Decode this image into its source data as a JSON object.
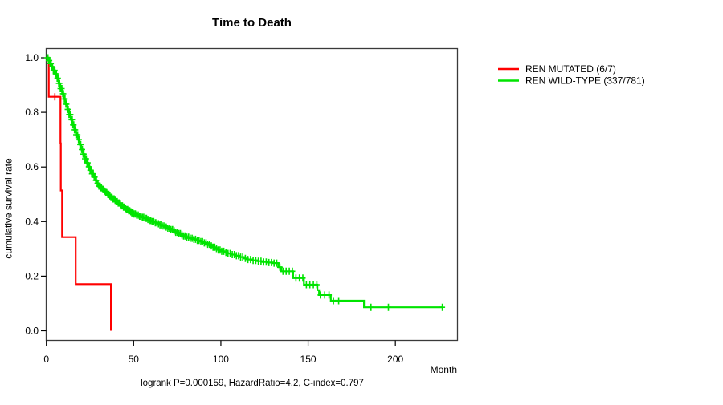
{
  "title": "Time to Death",
  "caption": "logrank P=0.000159, HazardRatio=4.2, C-index=0.797",
  "x_axis": {
    "label": "Month",
    "tick_labels": [
      "0",
      "50",
      "100",
      "150",
      "200"
    ],
    "tick_values": [
      0,
      50,
      100,
      150,
      200
    ]
  },
  "y_axis": {
    "label": "cumulative survival rate",
    "tick_labels": [
      "0.0",
      "0.2",
      "0.4",
      "0.6",
      "0.8",
      "1.0"
    ],
    "tick_values": [
      0,
      0.2,
      0.4,
      0.6,
      0.8,
      1.0
    ]
  },
  "legend": {
    "items": [
      {
        "label": "REN MUTATED (6/7)",
        "color": "#ff0000"
      },
      {
        "label": "REN WILD-TYPE (337/781)",
        "color": "#00e400"
      }
    ]
  },
  "chart_data": {
    "type": "line",
    "subtype": "kaplan_meier_step",
    "title": "Time to Death",
    "xlabel": "Month",
    "ylabel": "cumulative survival rate",
    "xlim": [
      0,
      235
    ],
    "ylim": [
      0,
      1
    ],
    "grid": false,
    "legend_position": "outside-right",
    "stats": {
      "logrank_p": "0.000159",
      "hazard_ratio": "4.2",
      "c_index": "0.797"
    },
    "series": [
      {
        "name": "REN MUTATED (6/7)",
        "events": "6/7",
        "color": "#ff0000",
        "points": [
          [
            0,
            1.0
          ],
          [
            1.4,
            0.857
          ],
          [
            8.1,
            0.686
          ],
          [
            8.3,
            0.514
          ],
          [
            9.0,
            0.343
          ],
          [
            16.8,
            0.171
          ],
          [
            37,
            0.0
          ]
        ],
        "censor_x": [
          4.9
        ]
      },
      {
        "name": "REN WILD-TYPE (337/781)",
        "events": "337/781",
        "color": "#00e400",
        "points": [
          [
            0,
            1.0
          ],
          [
            1,
            0.99
          ],
          [
            2,
            0.979
          ],
          [
            3,
            0.967
          ],
          [
            4,
            0.954
          ],
          [
            5,
            0.941
          ],
          [
            6,
            0.925
          ],
          [
            7,
            0.906
          ],
          [
            8,
            0.887
          ],
          [
            9,
            0.868
          ],
          [
            10,
            0.849
          ],
          [
            11,
            0.83
          ],
          [
            12,
            0.811
          ],
          [
            13,
            0.792
          ],
          [
            14,
            0.773
          ],
          [
            15,
            0.754
          ],
          [
            16,
            0.736
          ],
          [
            17,
            0.718
          ],
          [
            18,
            0.7
          ],
          [
            19,
            0.682
          ],
          [
            20,
            0.664
          ],
          [
            21,
            0.647
          ],
          [
            22,
            0.63
          ],
          [
            23,
            0.615
          ],
          [
            24,
            0.601
          ],
          [
            25,
            0.588
          ],
          [
            26,
            0.575
          ],
          [
            27,
            0.563
          ],
          [
            28,
            0.551
          ],
          [
            29,
            0.54
          ],
          [
            30,
            0.53
          ],
          [
            31,
            0.524
          ],
          [
            32,
            0.518
          ],
          [
            33,
            0.512
          ],
          [
            34,
            0.506
          ],
          [
            35,
            0.5
          ],
          [
            36,
            0.494
          ],
          [
            37,
            0.488
          ],
          [
            38,
            0.483
          ],
          [
            39,
            0.478
          ],
          [
            40,
            0.473
          ],
          [
            41,
            0.468
          ],
          [
            42,
            0.463
          ],
          [
            43,
            0.458
          ],
          [
            44,
            0.453
          ],
          [
            45,
            0.448
          ],
          [
            46,
            0.444
          ],
          [
            47,
            0.44
          ],
          [
            48,
            0.436
          ],
          [
            49,
            0.432
          ],
          [
            50,
            0.428
          ],
          [
            51.5,
            0.424
          ],
          [
            53,
            0.42
          ],
          [
            54.5,
            0.416
          ],
          [
            56,
            0.412
          ],
          [
            57.5,
            0.408
          ],
          [
            59,
            0.404
          ],
          [
            60.5,
            0.4
          ],
          [
            62,
            0.396
          ],
          [
            63.5,
            0.392
          ],
          [
            65,
            0.388
          ],
          [
            66.5,
            0.384
          ],
          [
            68,
            0.38
          ],
          [
            69.5,
            0.376
          ],
          [
            71,
            0.371
          ],
          [
            72.5,
            0.366
          ],
          [
            74,
            0.361
          ],
          [
            75.5,
            0.356
          ],
          [
            77,
            0.351
          ],
          [
            78.5,
            0.347
          ],
          [
            80,
            0.343
          ],
          [
            82,
            0.339
          ],
          [
            84,
            0.335
          ],
          [
            86,
            0.331
          ],
          [
            88,
            0.327
          ],
          [
            90,
            0.322
          ],
          [
            92,
            0.317
          ],
          [
            94,
            0.311
          ],
          [
            95.5,
            0.306
          ],
          [
            97,
            0.301
          ],
          [
            98.5,
            0.296
          ],
          [
            100,
            0.291
          ],
          [
            102,
            0.287
          ],
          [
            104,
            0.283
          ],
          [
            106,
            0.279
          ],
          [
            108,
            0.275
          ],
          [
            110.5,
            0.27
          ],
          [
            113,
            0.265
          ],
          [
            115.5,
            0.261
          ],
          [
            118,
            0.258
          ],
          [
            121,
            0.255
          ],
          [
            124,
            0.252
          ],
          [
            127,
            0.25
          ],
          [
            130,
            0.248
          ],
          [
            133,
            0.233
          ],
          [
            134.6,
            0.218
          ],
          [
            141.4,
            0.193
          ],
          [
            147.6,
            0.169
          ],
          [
            155.3,
            0.149
          ],
          [
            156.3,
            0.131
          ],
          [
            163,
            0.11
          ],
          [
            182,
            0.086
          ],
          [
            226.9,
            0.086
          ]
        ],
        "censor_x": [
          0.4,
          0.9,
          1.3,
          1.8,
          2.2,
          2.7,
          3.1,
          3.6,
          4,
          4.4,
          4.9,
          5.3,
          5.8,
          6.2,
          6.7,
          7.1,
          7.6,
          8,
          8.5,
          8.9,
          9.4,
          9.8,
          10.3,
          10.7,
          11.2,
          11.6,
          12.1,
          12.5,
          13,
          13.4,
          13.9,
          14.3,
          14.8,
          15.2,
          15.7,
          16.1,
          16.6,
          17,
          17.5,
          17.9,
          18.4,
          18.8,
          19.3,
          19.7,
          20.2,
          20.6,
          21.1,
          21.5,
          22,
          22.4,
          22.9,
          23.3,
          23.8,
          24.2,
          24.7,
          25.1,
          25.6,
          26,
          26.5,
          26.9,
          27.4,
          27.8,
          28.3,
          28.7,
          29.2,
          29.6,
          30.1,
          30.5,
          31,
          31.6,
          32.2,
          32.8,
          33.4,
          34,
          34.6,
          35.2,
          35.8,
          36.4,
          37,
          37.6,
          38.2,
          38.8,
          39.4,
          40,
          40.6,
          41.2,
          41.8,
          42.4,
          43,
          43.6,
          44.2,
          44.8,
          45.4,
          46,
          46.6,
          47.2,
          47.8,
          48.4,
          49,
          49.6,
          50.2,
          51,
          51.8,
          52.6,
          53.4,
          54.2,
          55,
          55.8,
          56.6,
          57.4,
          58.2,
          59,
          59.8,
          60.6,
          61.5,
          62.4,
          63.3,
          64.2,
          65.1,
          66,
          66.9,
          67.8,
          68.7,
          69.6,
          70.5,
          71.4,
          72.3,
          73.2,
          74.1,
          75,
          75.9,
          76.8,
          77.7,
          78.6,
          79.5,
          80.5,
          81.5,
          82.5,
          83.5,
          84.5,
          85.5,
          86.5,
          87.5,
          88.5,
          89.5,
          90.5,
          91.5,
          92.5,
          93.5,
          94.5,
          95.5,
          96.5,
          97.5,
          98.5,
          99.5,
          100.5,
          101.7,
          102.9,
          104.1,
          105.3,
          106.5,
          107.7,
          108.9,
          110.1,
          111.3,
          112.5,
          114,
          115.5,
          117,
          118.5,
          120,
          121.5,
          123,
          124.5,
          126,
          127.5,
          129,
          130.5,
          132,
          133.8,
          135.6,
          137.4,
          139.2,
          141,
          143,
          145,
          147,
          149,
          151,
          153,
          155,
          157,
          159.5,
          162,
          164.5,
          167.5,
          186,
          196,
          226.9
        ]
      }
    ]
  }
}
